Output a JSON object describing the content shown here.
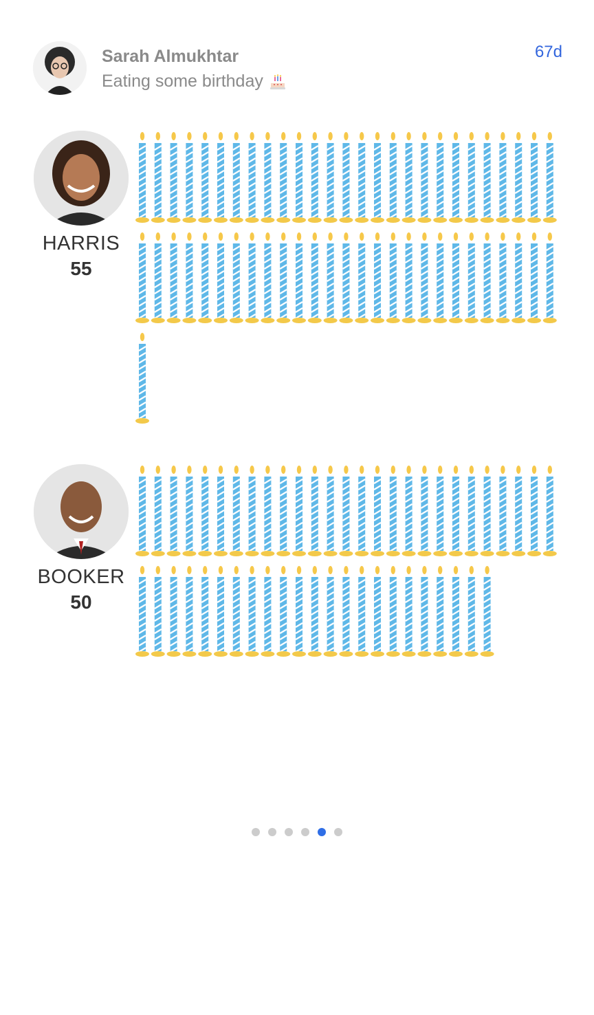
{
  "author": {
    "name": "Sarah Almukhtar",
    "status": "Eating some birthday",
    "status_emoji": "cake-icon",
    "age": "67d"
  },
  "people": [
    {
      "name": "HARRIS",
      "age": "55",
      "candles": 55
    },
    {
      "name": "BOOKER",
      "age": "50",
      "candles": 50
    }
  ],
  "pager": {
    "count": 6,
    "active_index": 4
  },
  "colors": {
    "accent": "#3366dd",
    "candle_blue": "#5fb8e8",
    "candle_stripe": "#ffffff",
    "candle_holder": "#f3c94a",
    "flame": "#f6c84a",
    "pager_active": "#2f6ee6",
    "pager_inactive": "#cccccc"
  }
}
